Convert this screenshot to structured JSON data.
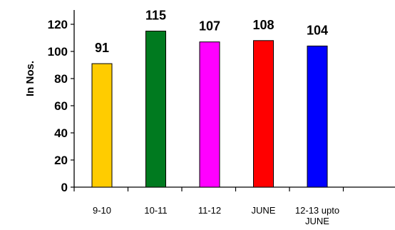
{
  "chart_data": {
    "type": "bar",
    "categories": [
      [
        "9-10"
      ],
      [
        "10-11"
      ],
      [
        "11-12"
      ],
      [
        "JUNE"
      ],
      [
        "12-13 upto",
        "JUNE"
      ]
    ],
    "values": [
      91,
      115,
      107,
      108,
      104
    ],
    "colors": [
      "#FFCC00",
      "#007A1F",
      "#FF00FF",
      "#FF0000",
      "#0000FF"
    ],
    "title": "",
    "xlabel": "",
    "ylabel": "In Nos.",
    "ylim": [
      0,
      120
    ],
    "yticks": [
      0,
      20,
      40,
      60,
      80,
      100,
      120
    ],
    "grid": false,
    "legend": "none"
  }
}
